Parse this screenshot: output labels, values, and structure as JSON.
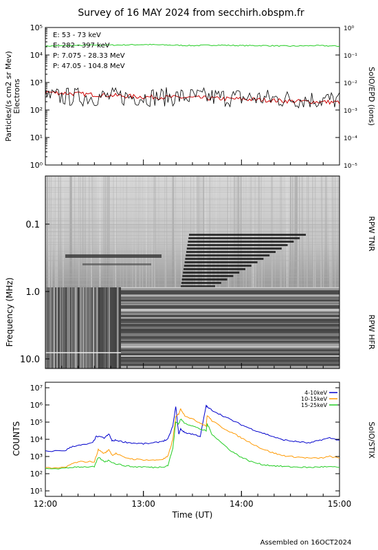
{
  "title": "Survey of 16 MAY 2024 from secchirh.obspm.fr",
  "footer": "Assembled on 16OCT2024",
  "colors": {
    "green": "#22cc22",
    "red": "#cc0000",
    "black": "#000000",
    "blue": "#0000cc",
    "orange": "#ff9900"
  },
  "chart_data": [
    {
      "type": "line",
      "ylabel": "Particles/(s cm2 sr Mev)",
      "ylabel2": "Electrons",
      "right_label": "SolO/EPD (ions)",
      "ylim": [
        1,
        100000
      ],
      "y_scale": "log",
      "yticks": [
        "10⁰",
        "10¹",
        "10²",
        "10³",
        "10⁴",
        "10⁵"
      ],
      "ylim_right": [
        1e-05,
        1
      ],
      "yticks_right": [
        "10⁻⁵",
        "10⁻⁴",
        "10⁻³",
        "10⁻²",
        "10⁻¹",
        "10⁰"
      ],
      "xlim": [
        "12:00",
        "15:00"
      ],
      "series": [
        {
          "name": "E: 53 - 73 keV",
          "color": "#22cc22",
          "t": [
            0,
            0.25,
            0.5,
            0.75,
            1,
            1.25,
            1.5,
            1.75,
            2,
            2.25,
            2.5,
            2.75,
            3
          ],
          "values": [
            21000,
            22000,
            23000,
            23000,
            24000,
            23000,
            22000,
            23000,
            22000,
            22000,
            21000,
            22000,
            21000
          ]
        },
        {
          "name": "E: 282 - 397 keV",
          "color": "#cc0000",
          "t": [
            0,
            0.25,
            0.5,
            0.75,
            1,
            1.25,
            1.5,
            1.75,
            2,
            2.25,
            2.5,
            2.75,
            3
          ],
          "values": [
            450,
            400,
            360,
            330,
            300,
            290,
            280,
            260,
            250,
            230,
            210,
            200,
            190
          ]
        },
        {
          "name": "P: 7.075 - 28.33 MeV",
          "color": "#000000",
          "t": [
            0,
            0.5,
            1,
            1.5,
            2,
            2.5,
            3
          ],
          "values": [
            300,
            300,
            300,
            300,
            280,
            250,
            230
          ]
        },
        {
          "name": "P: 47.05 - 104.8 MeV",
          "color": "#0000cc",
          "t": [],
          "values": []
        }
      ]
    },
    {
      "type": "heatmap",
      "ylabel": "Frequency (MHz)",
      "y_scale": "log",
      "yticks": [
        "0.1",
        "1.0",
        "10.0"
      ],
      "instruments": [
        "RPW TNR",
        "RPW HFR"
      ],
      "xlim": [
        "12:00",
        "15:00"
      ]
    },
    {
      "type": "line",
      "ylabel": "COUNTS",
      "right_label": "SolO/STIX",
      "xlabel": "Time (UT)",
      "y_scale": "log",
      "ylim": [
        10,
        10000000
      ],
      "yticks": [
        "10¹",
        "10²",
        "10³",
        "10⁴",
        "10⁵",
        "10⁶",
        "10⁷"
      ],
      "xlim": [
        "12:00",
        "15:00"
      ],
      "xticks": [
        "12:00",
        "13:00",
        "14:00",
        "15:00"
      ],
      "series": [
        {
          "name": "4-10keV",
          "color": "#0000cc",
          "t": [
            0,
            0.2,
            0.28,
            0.36,
            0.48,
            0.52,
            0.6,
            0.65,
            0.68,
            0.72,
            0.8,
            0.9,
            1.0,
            1.1,
            1.2,
            1.25,
            1.3,
            1.33,
            1.36,
            1.38,
            1.42,
            1.5,
            1.58,
            1.64,
            1.65,
            1.7,
            1.8,
            1.9,
            2.0,
            2.1,
            2.2,
            2.3,
            2.4,
            2.5,
            2.6,
            2.7,
            2.8,
            2.9,
            3.0
          ],
          "values": [
            2000,
            2200,
            4000,
            4500,
            6000,
            15000,
            12000,
            20000,
            8000,
            9000,
            7000,
            6000,
            5500,
            6000,
            8000,
            10000,
            60000,
            800000,
            20000,
            40000,
            25000,
            20000,
            15000,
            900000,
            750000,
            500000,
            250000,
            130000,
            70000,
            40000,
            25000,
            16000,
            10000,
            8000,
            7000,
            6000,
            9000,
            12000,
            9000
          ]
        },
        {
          "name": "10-15keV",
          "color": "#ff9900",
          "t": [
            0,
            0.2,
            0.28,
            0.36,
            0.5,
            0.54,
            0.6,
            0.65,
            0.68,
            0.72,
            0.8,
            0.9,
            1.0,
            1.1,
            1.2,
            1.25,
            1.3,
            1.33,
            1.36,
            1.38,
            1.42,
            1.5,
            1.58,
            1.64,
            1.65,
            1.7,
            1.8,
            1.9,
            2.0,
            2.1,
            2.2,
            2.3,
            2.4,
            2.5,
            2.6,
            2.7,
            2.8,
            2.9,
            3.0
          ],
          "values": [
            220,
            220,
            400,
            500,
            500,
            2500,
            1500,
            2500,
            1200,
            1500,
            900,
            700,
            650,
            600,
            700,
            1000,
            10000,
            200000,
            300000,
            600000,
            250000,
            150000,
            90000,
            60000,
            250000,
            120000,
            50000,
            25000,
            12000,
            6000,
            3000,
            1800,
            1200,
            1000,
            900,
            800,
            800,
            1000,
            800
          ]
        },
        {
          "name": "15-25keV",
          "color": "#22cc22",
          "t": [
            0,
            0.2,
            0.3,
            0.4,
            0.5,
            0.54,
            0.6,
            0.65,
            0.7,
            0.8,
            0.9,
            1.0,
            1.1,
            1.2,
            1.25,
            1.3,
            1.33,
            1.36,
            1.38,
            1.42,
            1.5,
            1.58,
            1.64,
            1.65,
            1.7,
            1.8,
            1.9,
            2.0,
            2.1,
            2.2,
            2.3,
            2.4,
            2.5,
            2.6,
            2.7,
            2.8,
            2.9,
            3.0
          ],
          "values": [
            200,
            200,
            250,
            250,
            250,
            900,
            500,
            600,
            400,
            300,
            250,
            250,
            230,
            250,
            300,
            3000,
            100000,
            80000,
            150000,
            90000,
            60000,
            40000,
            30000,
            80000,
            20000,
            6000,
            2000,
            900,
            500,
            350,
            300,
            270,
            250,
            240,
            230,
            250,
            250,
            230
          ]
        }
      ]
    }
  ]
}
